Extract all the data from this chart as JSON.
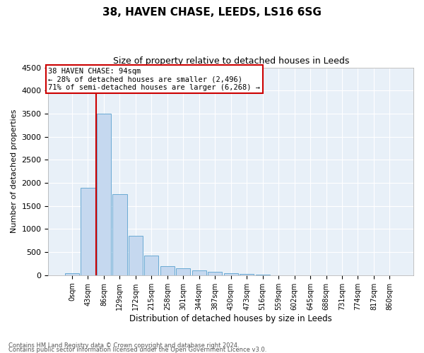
{
  "title1": "38, HAVEN CHASE, LEEDS, LS16 6SG",
  "title2": "Size of property relative to detached houses in Leeds",
  "xlabel": "Distribution of detached houses by size in Leeds",
  "ylabel": "Number of detached properties",
  "annotation_line1": "38 HAVEN CHASE: 94sqm",
  "annotation_line2": "← 28% of detached houses are smaller (2,496)",
  "annotation_line3": "71% of semi-detached houses are larger (6,268) →",
  "bin_labels": [
    "0sqm",
    "43sqm",
    "86sqm",
    "129sqm",
    "172sqm",
    "215sqm",
    "258sqm",
    "301sqm",
    "344sqm",
    "387sqm",
    "430sqm",
    "473sqm",
    "516sqm",
    "559sqm",
    "602sqm",
    "645sqm",
    "688sqm",
    "731sqm",
    "774sqm",
    "817sqm",
    "860sqm"
  ],
  "bar_values": [
    50,
    1900,
    3500,
    1750,
    850,
    430,
    200,
    150,
    100,
    70,
    50,
    25,
    8,
    4,
    2,
    1,
    1,
    1,
    1,
    1,
    1
  ],
  "bar_color": "#c5d8ef",
  "bar_edge_color": "#6aaad4",
  "vline_color": "#cc0000",
  "vline_position": 1.5,
  "annotation_box_color": "#cc0000",
  "background_color": "#e8f0f8",
  "ylim": [
    0,
    4500
  ],
  "yticks": [
    0,
    500,
    1000,
    1500,
    2000,
    2500,
    3000,
    3500,
    4000,
    4500
  ],
  "footnote1": "Contains HM Land Registry data © Crown copyright and database right 2024.",
  "footnote2": "Contains public sector information licensed under the Open Government Licence v3.0."
}
